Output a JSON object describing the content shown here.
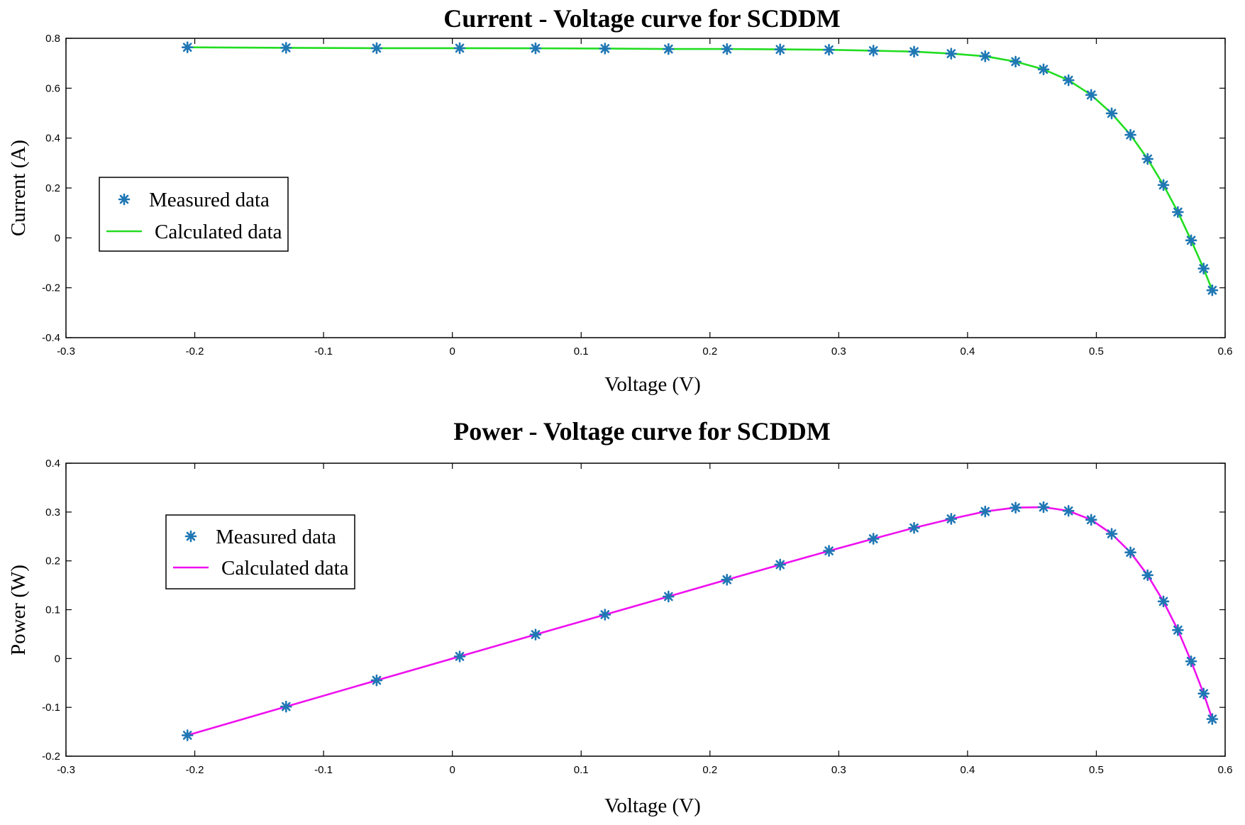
{
  "chart_data": [
    {
      "type": "line",
      "title": "Current - Voltage curve for SCDDM",
      "xlabel": "Voltage (V)",
      "ylabel": "Current (A)",
      "xlim": [
        -0.3,
        0.6
      ],
      "ylim": [
        -0.4,
        0.8
      ],
      "xticks": [
        "-0.3",
        "-0.2",
        "-0.1",
        "0",
        "0.1",
        "0.2",
        "0.3",
        "0.4",
        "0.5",
        "0.6"
      ],
      "yticks": [
        "-0.4",
        "-0.2",
        "0",
        "0.2",
        "0.4",
        "0.6",
        "0.8"
      ],
      "legend": {
        "position": "center-left",
        "entries": [
          "Measured data",
          "Calculated data"
        ]
      },
      "series": [
        {
          "name": "Measured data",
          "marker": "asterisk",
          "color": "#1f77b4",
          "x": [
            -0.2057,
            -0.1291,
            -0.0588,
            0.0057,
            0.0646,
            0.1185,
            0.1678,
            0.2132,
            0.2545,
            0.2924,
            0.3269,
            0.3585,
            0.3873,
            0.4137,
            0.4373,
            0.459,
            0.4784,
            0.496,
            0.5119,
            0.5265,
            0.5398,
            0.5521,
            0.5633,
            0.5736,
            0.5833,
            0.59
          ],
          "y": [
            0.764,
            0.762,
            0.7605,
            0.7605,
            0.76,
            0.759,
            0.757,
            0.757,
            0.7555,
            0.754,
            0.7505,
            0.7465,
            0.7385,
            0.728,
            0.7065,
            0.6755,
            0.632,
            0.573,
            0.499,
            0.413,
            0.3165,
            0.212,
            0.1035,
            -0.01,
            -0.123,
            -0.21
          ]
        },
        {
          "name": "Calculated data",
          "marker": "none",
          "color": "#22dd22",
          "x": [
            -0.2057,
            -0.1291,
            -0.0588,
            0.0057,
            0.0646,
            0.1185,
            0.1678,
            0.2132,
            0.2545,
            0.2924,
            0.3269,
            0.3585,
            0.3873,
            0.4137,
            0.4373,
            0.459,
            0.4784,
            0.496,
            0.5119,
            0.5265,
            0.5398,
            0.5521,
            0.5633,
            0.5736,
            0.5833,
            0.59
          ],
          "y": [
            0.764,
            0.762,
            0.7605,
            0.7605,
            0.76,
            0.759,
            0.757,
            0.757,
            0.7555,
            0.754,
            0.7505,
            0.7465,
            0.7385,
            0.728,
            0.7065,
            0.6755,
            0.632,
            0.573,
            0.499,
            0.413,
            0.3165,
            0.212,
            0.1035,
            -0.01,
            -0.123,
            -0.21
          ]
        }
      ]
    },
    {
      "type": "line",
      "title": "Power - Voltage curve for SCDDM",
      "xlabel": "Voltage (V)",
      "ylabel": "Power (W)",
      "xlim": [
        -0.3,
        0.6
      ],
      "ylim": [
        -0.2,
        0.4
      ],
      "xticks": [
        "-0.3",
        "-0.2",
        "-0.1",
        "0",
        "0.1",
        "0.2",
        "0.3",
        "0.4",
        "0.5",
        "0.6"
      ],
      "yticks": [
        "-0.2",
        "-0.1",
        "0",
        "0.1",
        "0.2",
        "0.3",
        "0.4"
      ],
      "legend": {
        "position": "top-left",
        "entries": [
          "Measured data",
          "Calculated data"
        ]
      },
      "series": [
        {
          "name": "Measured data",
          "marker": "asterisk",
          "color": "#1f77b4",
          "x": [
            -0.2057,
            -0.1291,
            -0.0588,
            0.0057,
            0.0646,
            0.1185,
            0.1678,
            0.2132,
            0.2545,
            0.2924,
            0.3269,
            0.3585,
            0.3873,
            0.4137,
            0.4373,
            0.459,
            0.4784,
            0.496,
            0.5119,
            0.5265,
            0.5398,
            0.5521,
            0.5633,
            0.5736,
            0.5833,
            0.59
          ],
          "y": [
            -0.1572,
            -0.0984,
            -0.0447,
            0.0043,
            0.0491,
            0.0899,
            0.127,
            0.1614,
            0.1923,
            0.2205,
            0.2453,
            0.2676,
            0.286,
            0.3012,
            0.309,
            0.3101,
            0.3024,
            0.2842,
            0.2554,
            0.2174,
            0.1708,
            0.117,
            0.0583,
            -0.0057,
            -0.0717,
            -0.1239
          ]
        },
        {
          "name": "Calculated data",
          "marker": "none",
          "color": "#ee11ee",
          "x": [
            -0.2057,
            -0.1291,
            -0.0588,
            0.0057,
            0.0646,
            0.1185,
            0.1678,
            0.2132,
            0.2545,
            0.2924,
            0.3269,
            0.3585,
            0.3873,
            0.4137,
            0.4373,
            0.459,
            0.4784,
            0.496,
            0.5119,
            0.5265,
            0.5398,
            0.5521,
            0.5633,
            0.5736,
            0.5833,
            0.59
          ],
          "y": [
            -0.1572,
            -0.0984,
            -0.0447,
            0.0043,
            0.0491,
            0.0899,
            0.127,
            0.1614,
            0.1923,
            0.2205,
            0.2453,
            0.2676,
            0.286,
            0.3012,
            0.309,
            0.3101,
            0.3024,
            0.2842,
            0.2554,
            0.2174,
            0.1708,
            0.117,
            0.0583,
            -0.0057,
            -0.0717,
            -0.1239
          ]
        }
      ]
    }
  ]
}
